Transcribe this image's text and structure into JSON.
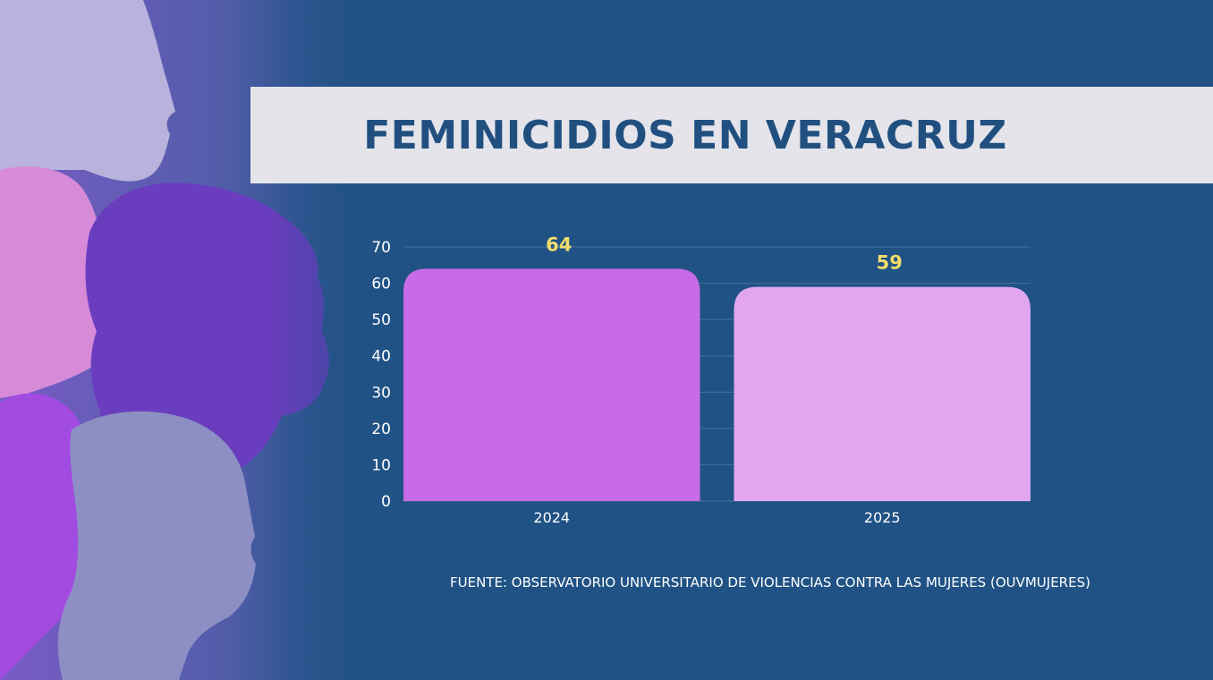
{
  "title": "FEMINICIDIOS EN VERACRUZ",
  "source": "FUENTE: OBSERVATORIO UNIVERSITARIO DE VIOLENCIAS CONTRA LAS MUJERES (OUVMUJERES)",
  "colors": {
    "background": "#205285",
    "title_band": "#e4e4ea",
    "title_text": "#215080",
    "value_label": "#f2dd6a",
    "axis_text": "#ffffff"
  },
  "chart_data": {
    "type": "bar",
    "title": "FEMINICIDIOS EN VERACRUZ",
    "categories": [
      "2024",
      "2025"
    ],
    "values": [
      64,
      59
    ],
    "bar_colors": [
      "#c76be6",
      "#e1a6ef"
    ],
    "value_labels": [
      "64",
      "59"
    ],
    "ylim": [
      0,
      70
    ],
    "yticks": [
      0,
      10,
      20,
      30,
      40,
      50,
      60,
      70
    ],
    "grid": true,
    "xlabel": "",
    "ylabel": ""
  }
}
